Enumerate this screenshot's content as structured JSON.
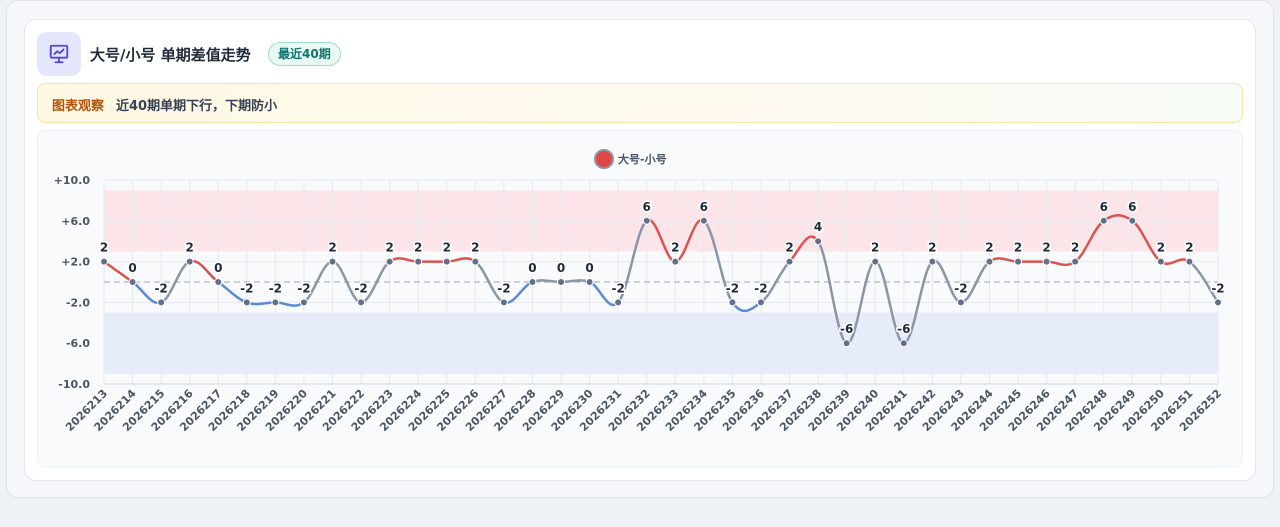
{
  "header": {
    "title": "大号/小号 单期差值走势",
    "badge": "最近40期"
  },
  "notice": {
    "tag": "图表观察",
    "text": "近40期单期下行，下期防小"
  },
  "colors": {
    "up": "#d9534f",
    "down": "#5b8ad8",
    "neutral": "#8a95a5",
    "point": "#64708a",
    "band_high": "#fbe5e8",
    "band_low": "#e6ecfa"
  },
  "chart_data": {
    "type": "line",
    "title": "",
    "xlabel": "",
    "ylabel": "",
    "ylim": [
      -10,
      10
    ],
    "yticks": [
      10,
      6,
      2,
      -2,
      -6,
      -10
    ],
    "ytick_labels": [
      "+10.0",
      "+6.0",
      "+2.0",
      "-2.0",
      "-6.0",
      "-10.0"
    ],
    "bands": [
      {
        "from": 3,
        "to": 9,
        "color": "#fbe5e8"
      },
      {
        "from": -9,
        "to": -3,
        "color": "#e6ecfa"
      }
    ],
    "reference_line": 0,
    "legend": {
      "position": "top-center"
    },
    "x": [
      "2026213",
      "2026214",
      "2026215",
      "2026216",
      "2026217",
      "2026218",
      "2026219",
      "2026220",
      "2026221",
      "2026222",
      "2026223",
      "2026224",
      "2026225",
      "2026226",
      "2026227",
      "2026228",
      "2026229",
      "2026230",
      "2026231",
      "2026232",
      "2026233",
      "2026234",
      "2026235",
      "2026236",
      "2026237",
      "2026238",
      "2026239",
      "2026240",
      "2026241",
      "2026242",
      "2026243",
      "2026244",
      "2026245",
      "2026246",
      "2026247",
      "2026248",
      "2026249",
      "2026250",
      "2026251",
      "2026252"
    ],
    "series": [
      {
        "name": "大号-小号",
        "values": [
          2,
          0,
          -2,
          2,
          0,
          -2,
          -2,
          -2,
          2,
          -2,
          2,
          2,
          2,
          2,
          -2,
          0,
          0,
          0,
          -2,
          6,
          2,
          6,
          -2,
          -2,
          2,
          4,
          -6,
          2,
          -6,
          2,
          -2,
          2,
          2,
          2,
          2,
          6,
          6,
          2,
          2,
          -2
        ]
      }
    ]
  }
}
